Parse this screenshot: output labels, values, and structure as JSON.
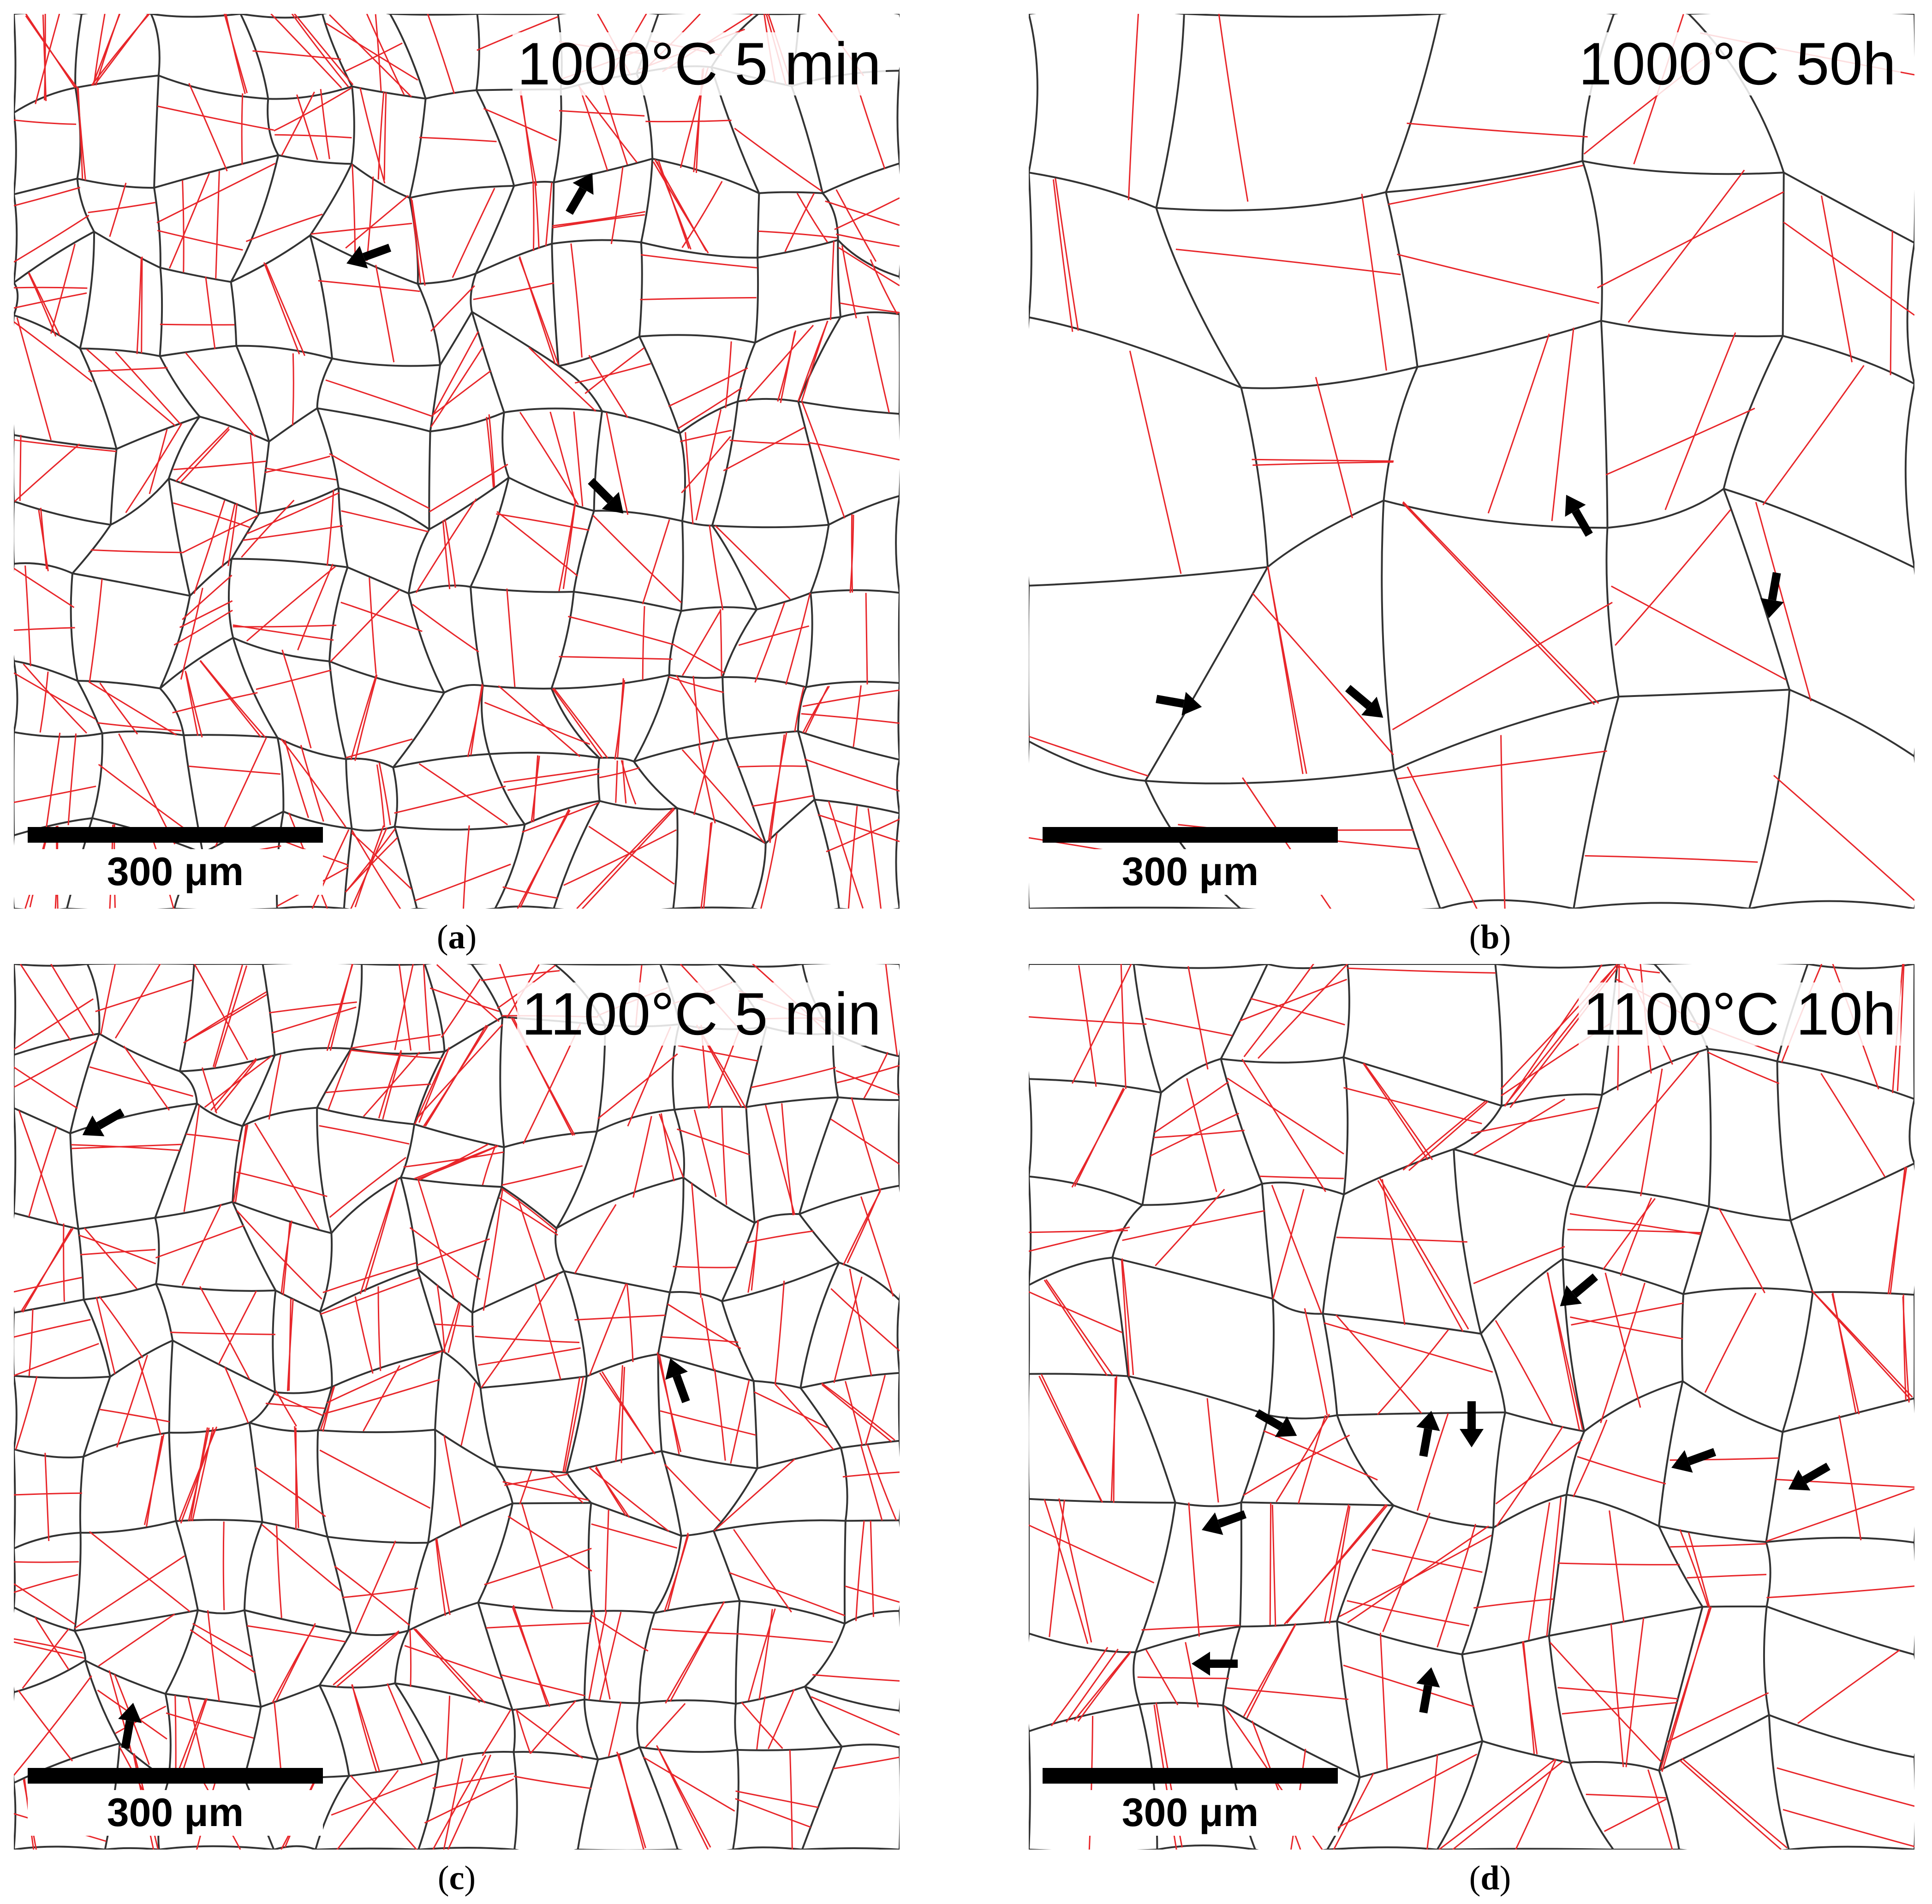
{
  "colors": {
    "high_angle_boundary": "#333333",
    "twin_boundary": "#e8262a",
    "arrow": "#000000"
  },
  "panels": [
    {
      "id": "a",
      "title": "1000°C 5 min",
      "scale_label": "300 μm",
      "caption": "a",
      "arrow_count": 3,
      "grain_density": "fine",
      "twin_density": "high"
    },
    {
      "id": "b",
      "title": "1000°C 50h",
      "scale_label": "300 μm",
      "caption": "b",
      "arrow_count": 4,
      "grain_density": "coarse",
      "twin_density": "medium"
    },
    {
      "id": "c",
      "title": "1100°C 5 min",
      "scale_label": "300 μm",
      "caption": "c",
      "arrow_count": 3,
      "grain_density": "fine",
      "twin_density": "high"
    },
    {
      "id": "d",
      "title": "1100°C 10h",
      "scale_label": "300 μm",
      "caption": "d",
      "arrow_count": 9,
      "grain_density": "medium",
      "twin_density": "high"
    }
  ]
}
